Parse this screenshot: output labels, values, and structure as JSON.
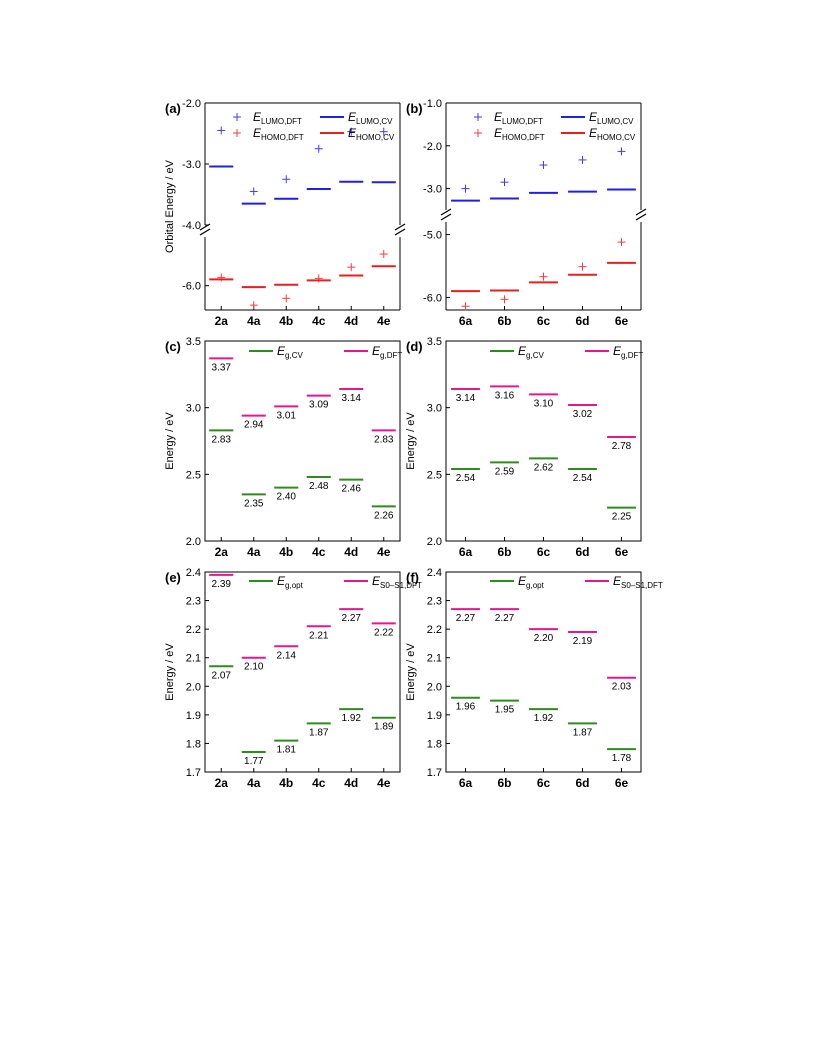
{
  "chart_data": [
    {
      "panel_label": "(a)",
      "type": "scatter",
      "categories": [
        "2a",
        "4a",
        "4b",
        "4c",
        "4d",
        "4e"
      ],
      "ylabel": "Orbital Energy / eV",
      "broken_axis": true,
      "segments": [
        {
          "range": [
            -4.0,
            -2.0
          ]
        },
        {
          "range": [
            -6.5,
            -5.0
          ]
        }
      ],
      "yticks": [
        -2.0,
        -3.0,
        -4.0,
        -6.0
      ],
      "series": [
        {
          "name_main": "E",
          "name_sub": "LUMO,DFT",
          "marker": "plus",
          "color": "#3b3bff",
          "values": [
            -2.45,
            -3.45,
            -3.25,
            -2.75,
            -2.47,
            -2.47
          ]
        },
        {
          "name_main": "E",
          "name_sub": "LUMO,CV",
          "marker": "dash",
          "color": "#1f1fe6",
          "values": [
            -3.04,
            -3.65,
            -3.57,
            -3.41,
            -3.29,
            -3.3
          ]
        },
        {
          "name_main": "E",
          "name_sub": "HOMO,DFT",
          "marker": "plus",
          "color": "#ff3b3b",
          "values": [
            -5.83,
            -6.4,
            -6.26,
            -5.85,
            -5.62,
            -5.35
          ]
        },
        {
          "name_main": "E",
          "name_sub": "HOMO,CV",
          "marker": "dash",
          "color": "#e61f1f",
          "values": [
            -5.87,
            -6.03,
            -5.98,
            -5.89,
            -5.79,
            -5.6
          ]
        }
      ]
    },
    {
      "panel_label": "(b)",
      "type": "scatter",
      "categories": [
        "6a",
        "6b",
        "6c",
        "6d",
        "6e"
      ],
      "ylabel": "",
      "broken_axis": true,
      "segments": [
        {
          "range": [
            -3.5,
            -1.0
          ]
        },
        {
          "range": [
            -6.2,
            -4.8
          ]
        }
      ],
      "yticks": [
        -1.0,
        -2.0,
        -3.0,
        -5.0,
        -6.0
      ],
      "series": [
        {
          "name_main": "E",
          "name_sub": "LUMO,DFT",
          "marker": "plus",
          "color": "#3b3bff",
          "values": [
            -3.0,
            -2.85,
            -2.45,
            -2.33,
            -2.13
          ]
        },
        {
          "name_main": "E",
          "name_sub": "LUMO,CV",
          "marker": "dash",
          "color": "#1f1fe6",
          "values": [
            -3.28,
            -3.23,
            -3.1,
            -3.07,
            -3.02
          ]
        },
        {
          "name_main": "E",
          "name_sub": "HOMO,DFT",
          "marker": "plus",
          "color": "#ff3b3b",
          "values": [
            -6.14,
            -6.03,
            -5.67,
            -5.51,
            -5.12
          ]
        },
        {
          "name_main": "E",
          "name_sub": "HOMO,CV",
          "marker": "dash",
          "color": "#e61f1f",
          "values": [
            -5.9,
            -5.89,
            -5.76,
            -5.64,
            -5.45
          ]
        }
      ]
    },
    {
      "panel_label": "(c)",
      "type": "scatter",
      "categories": [
        "2a",
        "4a",
        "4b",
        "4c",
        "4d",
        "4e"
      ],
      "ylabel": "Energy / eV",
      "ylim": [
        2.0,
        3.5
      ],
      "yticks": [
        "2.0",
        "2.5",
        "3.0",
        "3.5"
      ],
      "series": [
        {
          "name_main": "E",
          "name_sub": "g,CV",
          "marker": "dash",
          "color": "#2e8b1e",
          "values": [
            2.83,
            2.35,
            2.4,
            2.48,
            2.46,
            2.26
          ],
          "labels": [
            "2.83",
            "2.35",
            "2.40",
            "2.48",
            "2.46",
            "2.26"
          ]
        },
        {
          "name_main": "E",
          "name_sub": "g,DFT",
          "marker": "dash",
          "color": "#e6178e",
          "values": [
            3.37,
            2.94,
            3.01,
            3.09,
            3.14,
            2.83
          ],
          "labels": [
            "3.37",
            "2.94",
            "3.01",
            "3.09",
            "3.14",
            "2.83"
          ]
        }
      ]
    },
    {
      "panel_label": "(d)",
      "type": "scatter",
      "categories": [
        "6a",
        "6b",
        "6c",
        "6d",
        "6e"
      ],
      "ylabel": "Energy / eV",
      "ylim": [
        2.0,
        3.5
      ],
      "yticks": [
        "2.0",
        "2.5",
        "3.0",
        "3.5"
      ],
      "series": [
        {
          "name_main": "E",
          "name_sub": "g,CV",
          "marker": "dash",
          "color": "#2e8b1e",
          "values": [
            2.54,
            2.59,
            2.62,
            2.54,
            2.25
          ],
          "labels": [
            "2.54",
            "2.59",
            "2.62",
            "2.54",
            "2.25"
          ]
        },
        {
          "name_main": "E",
          "name_sub": "g,DFT",
          "marker": "dash",
          "color": "#e6178e",
          "values": [
            3.14,
            3.16,
            3.1,
            3.02,
            2.78
          ],
          "labels": [
            "3.14",
            "3.16",
            "3.10",
            "3.02",
            "2.78"
          ]
        }
      ]
    },
    {
      "panel_label": "(e)",
      "type": "scatter",
      "categories": [
        "2a",
        "4a",
        "4b",
        "4c",
        "4d",
        "4e"
      ],
      "ylabel": "Energy / eV",
      "ylim": [
        1.7,
        2.4
      ],
      "yticks": [
        "1.7",
        "1.8",
        "1.9",
        "2.0",
        "2.1",
        "2.2",
        "2.3",
        "2.4"
      ],
      "series": [
        {
          "name_main": "E",
          "name_sub": "g,opt",
          "marker": "dash",
          "color": "#2e8b1e",
          "values": [
            2.07,
            1.77,
            1.81,
            1.87,
            1.92,
            1.89
          ],
          "labels": [
            "2.07",
            "1.77",
            "1.81",
            "1.87",
            "1.92",
            "1.89"
          ]
        },
        {
          "name_main": "E",
          "name_sub": "S0–S1,DFT",
          "marker": "dash",
          "color": "#e6178e",
          "values": [
            2.39,
            2.1,
            2.14,
            2.21,
            2.27,
            2.22
          ],
          "labels": [
            "2.39",
            "2.10",
            "2.14",
            "2.21",
            "2.27",
            "2.22"
          ]
        }
      ]
    },
    {
      "panel_label": "(f)",
      "type": "scatter",
      "categories": [
        "6a",
        "6b",
        "6c",
        "6d",
        "6e"
      ],
      "ylabel": "Energy / eV",
      "ylim": [
        1.7,
        2.4
      ],
      "yticks": [
        "1.7",
        "1.8",
        "1.9",
        "2.0",
        "2.1",
        "2.2",
        "2.3",
        "2.4"
      ],
      "series": [
        {
          "name_main": "E",
          "name_sub": "g,opt",
          "marker": "dash",
          "color": "#2e8b1e",
          "values": [
            1.96,
            1.95,
            1.92,
            1.87,
            1.78
          ],
          "labels": [
            "1.96",
            "1.95",
            "1.92",
            "1.87",
            "1.78"
          ]
        },
        {
          "name_main": "E",
          "name_sub": "S0–S1,DFT",
          "marker": "dash",
          "color": "#e6178e",
          "values": [
            2.27,
            2.27,
            2.2,
            2.19,
            2.03
          ],
          "labels": [
            "2.27",
            "2.27",
            "2.20",
            "2.19",
            "2.03"
          ]
        }
      ]
    }
  ]
}
